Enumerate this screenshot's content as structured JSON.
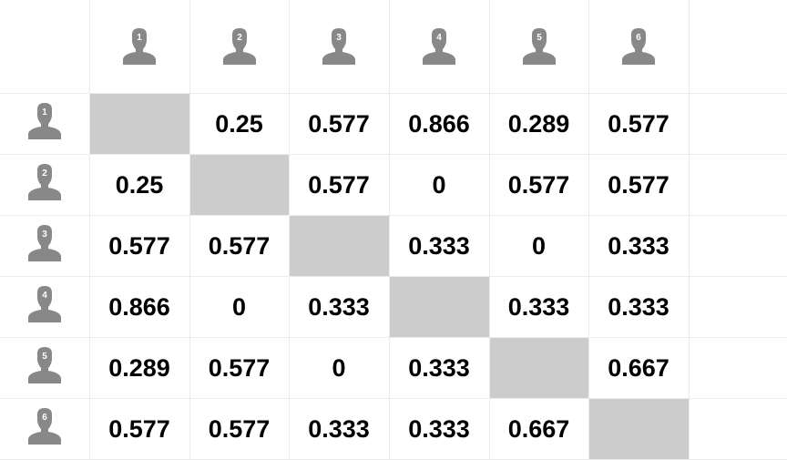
{
  "users": [
    "1",
    "2",
    "3",
    "4",
    "5",
    "6"
  ],
  "icon": "user-silhouette-icon",
  "colors": {
    "icon": "#888888",
    "diagonal": "#cccccc",
    "grid": "#ececec"
  },
  "matrix": [
    [
      "",
      "0.25",
      "0.577",
      "0.866",
      "0.289",
      "0.577"
    ],
    [
      "0.25",
      "",
      "0.577",
      "0",
      "0.577",
      "0.577"
    ],
    [
      "0.577",
      "0.577",
      "",
      "0.333",
      "0",
      "0.333"
    ],
    [
      "0.866",
      "0",
      "0.333",
      "",
      "0.333",
      "0.333"
    ],
    [
      "0.289",
      "0.577",
      "0",
      "0.333",
      "",
      "0.667"
    ],
    [
      "0.577",
      "0.577",
      "0.333",
      "0.333",
      "0.667",
      ""
    ]
  ]
}
